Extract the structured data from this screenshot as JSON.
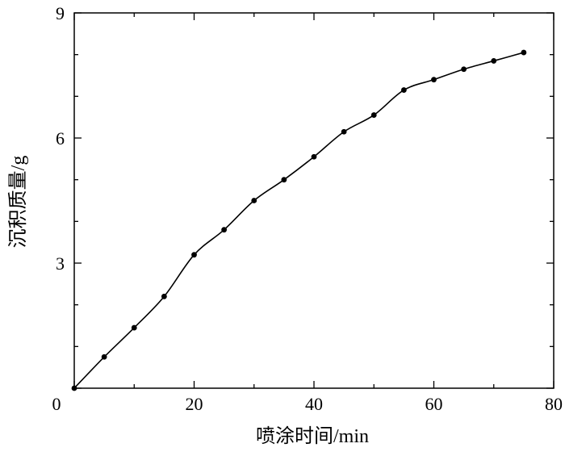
{
  "chart_data": {
    "type": "line",
    "title": "",
    "xlabel": "喷涂时间/min",
    "ylabel": "沉积质量/g",
    "xlim": [
      0,
      80
    ],
    "ylim": [
      0,
      9
    ],
    "x_ticks": [
      0,
      20,
      40,
      60,
      80
    ],
    "y_ticks": [
      0,
      3,
      6,
      9
    ],
    "x_minor_step": 10,
    "y_minor_step": 1,
    "grid": false,
    "legend": "none",
    "series": [
      {
        "x": [
          0,
          5,
          10,
          15,
          20,
          25,
          30,
          35,
          40,
          45,
          50,
          55,
          60,
          65,
          70,
          75
        ],
        "y": [
          0,
          0.75,
          1.45,
          2.2,
          3.2,
          3.8,
          4.5,
          5.0,
          5.55,
          6.15,
          6.55,
          7.15,
          7.4,
          7.65,
          7.85,
          8.05
        ]
      }
    ],
    "colors": {
      "line": "#000000",
      "marker": "#000000",
      "axes": "#000000"
    }
  }
}
